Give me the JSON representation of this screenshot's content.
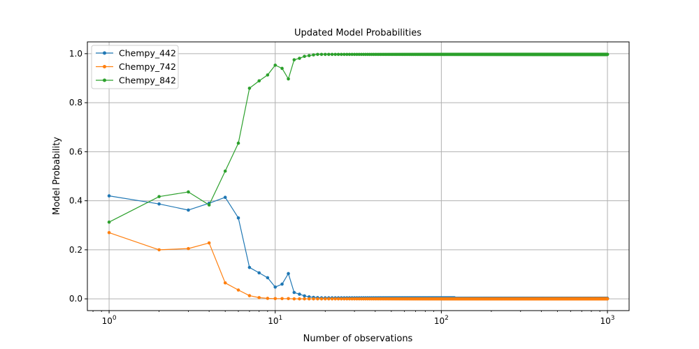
{
  "chart_data": {
    "type": "line",
    "title": "Updated Model Probabilities",
    "xlabel": "Number of observations",
    "ylabel": "Model Probability",
    "xscale": "log",
    "xlim": [
      0.74,
      1350
    ],
    "ylim": [
      -0.048,
      1.048
    ],
    "x_ticks": [
      1,
      10,
      100,
      1000
    ],
    "x_tick_labels": [
      {
        "base": "10",
        "exp": "0"
      },
      {
        "base": "10",
        "exp": "1"
      },
      {
        "base": "10",
        "exp": "2"
      },
      {
        "base": "10",
        "exp": "3"
      }
    ],
    "y_ticks": [
      0.0,
      0.2,
      0.4,
      0.6,
      0.8,
      1.0
    ],
    "y_tick_labels": [
      "0.0",
      "0.2",
      "0.4",
      "0.6",
      "0.8",
      "1.0"
    ],
    "grid": true,
    "legend_position": "top-left",
    "x_start": 1,
    "x_end": 1000,
    "series": [
      {
        "name": "Chempy_442",
        "color": "#1f77b4",
        "values": [
          0.42,
          0.387,
          0.362,
          0.39,
          0.414,
          0.33,
          0.128,
          0.106,
          0.086,
          0.048,
          0.06,
          0.103,
          0.026,
          0.019,
          0.012,
          0.008,
          0.006,
          0.005
        ],
        "tail_value": 0.004,
        "tail_until": 120,
        "tail_value_after": 0.002
      },
      {
        "name": "Chempy_742",
        "color": "#ff7f0e",
        "values": [
          0.27,
          0.2,
          0.205,
          0.228,
          0.065,
          0.036,
          0.013,
          0.005,
          0.002,
          0.001,
          0.001,
          0.001,
          0.0,
          0.0,
          0.0,
          0.0,
          0.0,
          0.0
        ],
        "tail_value": 0.0
      },
      {
        "name": "Chempy_842",
        "color": "#2ca02c",
        "values": [
          0.313,
          0.417,
          0.436,
          0.383,
          0.521,
          0.635,
          0.859,
          0.889,
          0.913,
          0.953,
          0.94,
          0.897,
          0.975,
          0.981,
          0.989,
          0.992,
          0.995,
          0.997
        ],
        "tail_value": 0.997
      }
    ]
  }
}
